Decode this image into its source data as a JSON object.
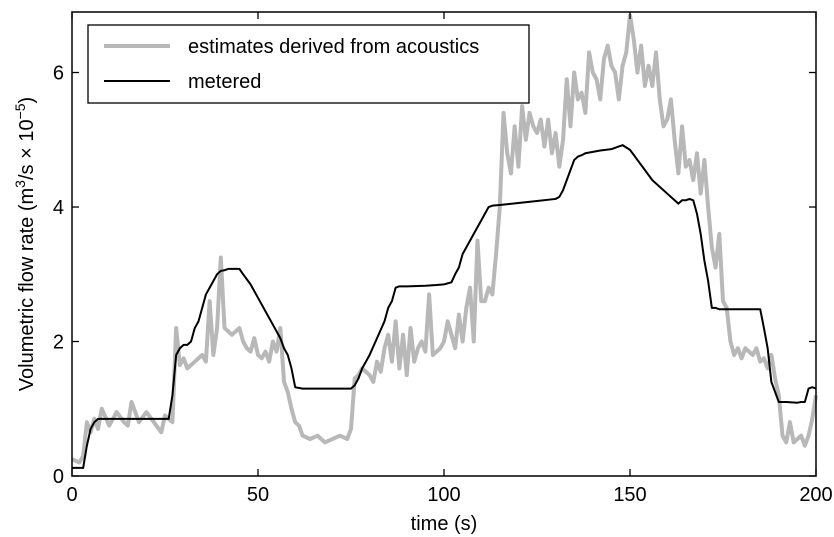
{
  "chart_data": {
    "type": "line",
    "title": "",
    "xlabel": "time (s)",
    "ylabel": {
      "prefix": "Volumetric flow rate (m",
      "sup1": "3",
      "middle": "/s × 10",
      "sup2": "−5",
      "suffix": ")"
    },
    "xlim": [
      0,
      200
    ],
    "ylim": [
      0,
      6.9
    ],
    "xticks": [
      0,
      50,
      100,
      150,
      200
    ],
    "yticks": [
      0,
      2,
      4,
      6
    ],
    "grid": false,
    "legend_position": "top-left",
    "series": [
      {
        "name": "estimates derived from acoustics",
        "color": "#b8b8b8",
        "x": [
          0,
          2,
          3,
          4,
          5,
          6,
          7,
          8,
          10,
          12,
          14,
          15,
          16,
          18,
          20,
          22,
          24,
          25,
          26,
          27,
          28,
          29,
          30,
          31,
          33,
          35,
          36,
          37,
          38,
          39,
          40,
          41,
          43,
          45,
          46,
          47,
          48,
          49,
          50,
          51,
          52,
          53,
          54,
          55,
          56,
          57,
          58,
          59,
          60,
          61,
          62,
          64,
          66,
          68,
          70,
          72,
          74,
          75,
          76,
          77,
          78,
          80,
          81,
          82,
          83,
          84,
          85,
          86,
          87,
          88,
          89,
          90,
          91,
          92,
          93,
          94,
          95,
          96,
          97,
          98,
          99,
          100,
          101,
          102,
          103,
          104,
          105,
          106,
          107,
          108,
          109,
          110,
          111,
          112,
          113,
          114,
          115,
          116,
          117,
          118,
          119,
          120,
          121,
          122,
          123,
          124,
          125,
          126,
          127,
          128,
          129,
          130,
          131,
          132,
          133,
          134,
          135,
          136,
          137,
          138,
          139,
          140,
          141,
          142,
          143,
          144,
          145,
          146,
          147,
          148,
          149,
          150,
          151,
          152,
          153,
          154,
          155,
          156,
          157,
          158,
          159,
          160,
          161,
          162,
          163,
          164,
          165,
          166,
          167,
          168,
          169,
          170,
          171,
          172,
          173,
          174,
          175,
          176,
          177,
          178,
          179,
          180,
          181,
          182,
          183,
          184,
          185,
          186,
          187,
          188,
          189,
          190,
          191,
          192,
          193,
          194,
          195,
          196,
          197,
          198,
          199,
          200
        ],
        "values": [
          0.25,
          0.2,
          0.3,
          0.8,
          0.65,
          0.85,
          0.7,
          1.0,
          0.75,
          0.95,
          0.8,
          0.75,
          1.1,
          0.8,
          0.95,
          0.8,
          0.65,
          0.9,
          0.85,
          0.8,
          2.2,
          1.65,
          1.75,
          1.6,
          1.7,
          1.8,
          1.7,
          2.6,
          1.8,
          2.2,
          3.25,
          2.2,
          2.1,
          2.2,
          2.0,
          1.9,
          1.85,
          2.05,
          1.8,
          1.75,
          1.85,
          1.7,
          2.0,
          1.85,
          2.2,
          1.4,
          1.25,
          1.0,
          0.8,
          0.75,
          0.6,
          0.55,
          0.6,
          0.5,
          0.55,
          0.6,
          0.55,
          0.7,
          1.45,
          1.5,
          1.6,
          1.5,
          1.4,
          1.7,
          1.55,
          1.9,
          2.1,
          1.7,
          2.3,
          1.6,
          2.1,
          1.5,
          2.2,
          1.7,
          1.9,
          2.0,
          1.85,
          2.7,
          1.8,
          1.85,
          1.9,
          2.0,
          2.3,
          2.1,
          1.9,
          2.4,
          2.0,
          2.5,
          2.8,
          2.0,
          3.5,
          2.6,
          2.6,
          2.8,
          2.7,
          3.3,
          4.0,
          5.4,
          4.8,
          4.5,
          5.2,
          4.6,
          5.5,
          5.0,
          5.4,
          5.2,
          5.1,
          5.3,
          4.9,
          5.3,
          4.8,
          5.1,
          4.6,
          5.0,
          5.9,
          5.2,
          6.0,
          5.6,
          5.7,
          5.4,
          6.3,
          6.0,
          5.9,
          5.6,
          6.2,
          6.4,
          6.1,
          6.0,
          5.6,
          6.1,
          6.3,
          6.85,
          6.5,
          6.0,
          6.4,
          5.8,
          6.1,
          5.8,
          6.3,
          5.6,
          5.2,
          5.3,
          5.6,
          5.0,
          4.5,
          5.2,
          4.6,
          4.7,
          4.4,
          4.8,
          4.2,
          4.7,
          4.0,
          3.4,
          3.1,
          3.6,
          2.6,
          2.5,
          2.0,
          1.8,
          1.9,
          1.75,
          1.9,
          1.85,
          1.8,
          1.9,
          1.7,
          1.75,
          1.6,
          1.8,
          1.45,
          1.2,
          0.6,
          0.5,
          0.8,
          0.5,
          0.55,
          0.6,
          0.45,
          0.6,
          0.85,
          1.2
        ],
        "stroke_width": 4
      },
      {
        "name": "metered",
        "color": "#000000",
        "x": [
          0,
          3,
          4,
          5,
          6,
          7,
          8,
          10,
          20,
          26,
          27,
          28,
          29,
          30,
          31,
          32,
          33,
          34,
          35,
          36,
          37,
          38,
          39,
          40,
          41,
          42,
          43,
          44,
          45,
          46,
          48,
          50,
          52,
          54,
          56,
          57,
          58,
          59,
          60,
          62,
          66,
          70,
          74,
          75,
          76,
          77,
          78,
          80,
          82,
          84,
          85,
          86,
          87,
          88,
          90,
          95,
          98,
          100,
          102,
          103,
          104,
          105,
          106,
          108,
          110,
          111,
          112,
          113,
          115,
          120,
          125,
          130,
          131,
          132,
          133,
          134,
          135,
          136,
          137,
          138,
          140,
          142,
          145,
          147,
          148,
          150,
          152,
          154,
          156,
          158,
          160,
          162,
          163,
          164,
          165,
          166,
          167,
          168,
          169,
          170,
          171,
          172,
          173,
          174,
          175,
          176,
          178,
          180,
          182,
          184,
          185,
          186,
          187,
          188,
          190,
          192,
          195,
          196,
          197,
          198,
          199,
          200
        ],
        "values": [
          0.12,
          0.12,
          0.45,
          0.7,
          0.8,
          0.85,
          0.85,
          0.85,
          0.85,
          0.85,
          1.2,
          1.8,
          1.9,
          1.95,
          1.95,
          2.0,
          2.2,
          2.3,
          2.5,
          2.7,
          2.8,
          2.9,
          3.0,
          3.05,
          3.06,
          3.08,
          3.08,
          3.08,
          3.08,
          3.0,
          2.85,
          2.65,
          2.45,
          2.25,
          2.05,
          1.9,
          1.8,
          1.6,
          1.32,
          1.3,
          1.3,
          1.3,
          1.3,
          1.3,
          1.35,
          1.45,
          1.6,
          1.8,
          2.05,
          2.3,
          2.5,
          2.6,
          2.8,
          2.82,
          2.82,
          2.83,
          2.84,
          2.85,
          2.88,
          3.0,
          3.1,
          3.3,
          3.4,
          3.6,
          3.8,
          3.9,
          4.0,
          4.02,
          4.03,
          4.06,
          4.09,
          4.12,
          4.15,
          4.25,
          4.4,
          4.55,
          4.7,
          4.75,
          4.77,
          4.8,
          4.82,
          4.84,
          4.86,
          4.9,
          4.92,
          4.85,
          4.7,
          4.55,
          4.4,
          4.3,
          4.2,
          4.1,
          4.05,
          4.1,
          4.1,
          4.12,
          4.1,
          3.9,
          3.6,
          3.2,
          2.9,
          2.5,
          2.5,
          2.48,
          2.48,
          2.48,
          2.48,
          2.48,
          2.48,
          2.48,
          2.48,
          2.2,
          1.9,
          1.4,
          1.1,
          1.1,
          1.09,
          1.1,
          1.1,
          1.3,
          1.32,
          1.3
        ]
      }
    ]
  }
}
